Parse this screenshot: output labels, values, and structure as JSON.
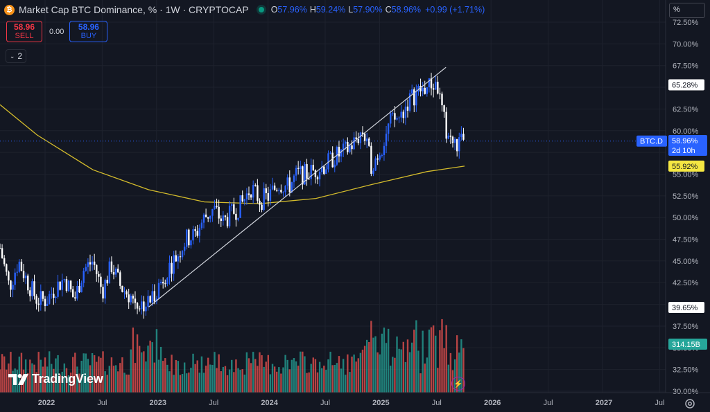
{
  "header": {
    "title": "Market Cap BTC Dominance, % · 1W · CRYPTOCAP",
    "ohlc": {
      "o_label": "O",
      "o": "57.96%",
      "h_label": "H",
      "h": "59.24%",
      "l_label": "L",
      "l": "57.90%",
      "c_label": "C",
      "c": "58.96%",
      "change": "+0.99 (+1.71%)"
    }
  },
  "trade": {
    "sell_price": "58.96",
    "sell_label": "SELL",
    "spread": "0.00",
    "buy_price": "58.96",
    "buy_label": "BUY"
  },
  "indicators_toggle": "2",
  "percent_button": "%",
  "branding": "TradingView",
  "price_axis": {
    "ticks": [
      "72.50%",
      "70.00%",
      "67.50%",
      "65.00%",
      "62.50%",
      "60.00%",
      "57.50%",
      "55.00%",
      "52.50%",
      "50.00%",
      "47.50%",
      "45.00%",
      "42.50%",
      "40.00%",
      "37.50%",
      "35.00%",
      "32.50%",
      "30.00%"
    ],
    "badges": {
      "trendline_level": "65.28%",
      "symbol": "BTC.D",
      "last_price": "58.96%",
      "countdown": "2d 10h",
      "ma_level": "55.92%",
      "low_marker": "39.65%",
      "volume": "314.15B"
    }
  },
  "time_axis": {
    "ticks": [
      "2022",
      "Jul",
      "2023",
      "Jul",
      "2024",
      "Jul",
      "2025",
      "Jul",
      "2026",
      "Jul",
      "2027",
      "Jul"
    ]
  },
  "colors": {
    "background": "#131722",
    "up": "#2962ff",
    "down": "#ffffff",
    "ma": "#d4bc2c",
    "trendline": "#d1d4dc",
    "vol_up": "#26a69a",
    "vol_down": "#ef5350",
    "grid": "#1e222d"
  },
  "chart_data": {
    "type": "candlestick",
    "interval": "1W",
    "price_unit": "%",
    "ylim": [
      30,
      72.5
    ],
    "xlim": [
      "2021-08",
      "2027-11"
    ],
    "grid": true,
    "series": [
      {
        "name": "BTC.D",
        "kind": "candles",
        "close_path": [
          [
            "2021-08",
            46.5
          ],
          [
            "2021-09",
            42.0
          ],
          [
            "2021-10",
            45.0
          ],
          [
            "2021-11",
            42.5
          ],
          [
            "2021-12",
            40.5
          ],
          [
            "2022-01",
            40.5
          ],
          [
            "2022-02",
            42.0
          ],
          [
            "2022-03",
            43.0
          ],
          [
            "2022-04",
            40.5
          ],
          [
            "2022-05",
            44.0
          ],
          [
            "2022-06",
            45.0
          ],
          [
            "2022-07",
            41.5
          ],
          [
            "2022-08",
            44.5
          ],
          [
            "2022-09",
            42.0
          ],
          [
            "2022-10",
            41.0
          ],
          [
            "2022-11",
            40.0
          ],
          [
            "2022-12",
            40.2
          ],
          [
            "2023-01",
            42.0
          ],
          [
            "2023-02",
            44.0
          ],
          [
            "2023-03",
            45.5
          ],
          [
            "2023-04",
            47.5
          ],
          [
            "2023-05",
            48.0
          ],
          [
            "2023-06",
            50.0
          ],
          [
            "2023-07",
            51.0
          ],
          [
            "2023-08",
            49.5
          ],
          [
            "2023-09",
            50.5
          ],
          [
            "2023-10",
            51.5
          ],
          [
            "2023-11",
            53.5
          ],
          [
            "2023-12",
            52.0
          ],
          [
            "2024-01",
            52.5
          ],
          [
            "2024-02",
            54.0
          ],
          [
            "2024-03",
            53.5
          ],
          [
            "2024-04",
            55.0
          ],
          [
            "2024-05",
            55.0
          ],
          [
            "2024-06",
            55.5
          ],
          [
            "2024-07",
            56.0
          ],
          [
            "2024-08",
            57.0
          ],
          [
            "2024-09",
            57.5
          ],
          [
            "2024-10",
            58.5
          ],
          [
            "2024-11",
            60.0
          ],
          [
            "2024-12",
            56.0
          ],
          [
            "2025-01",
            58.0
          ],
          [
            "2025-02",
            61.0
          ],
          [
            "2025-03",
            61.5
          ],
          [
            "2025-04",
            63.5
          ],
          [
            "2025-05",
            64.5
          ],
          [
            "2025-06",
            65.0
          ],
          [
            "2025-07",
            65.5
          ],
          [
            "2025-08",
            60.0
          ],
          [
            "2025-09",
            58.2
          ],
          [
            "2025-10",
            58.96
          ]
        ]
      },
      {
        "name": "MA",
        "kind": "line",
        "points": [
          [
            "2021-08",
            63.0
          ],
          [
            "2021-12",
            59.5
          ],
          [
            "2022-06",
            55.5
          ],
          [
            "2022-12",
            53.2
          ],
          [
            "2023-06",
            51.8
          ],
          [
            "2023-12",
            51.6
          ],
          [
            "2024-06",
            52.2
          ],
          [
            "2024-12",
            53.8
          ],
          [
            "2025-06",
            55.3
          ],
          [
            "2025-10",
            55.92
          ]
        ]
      },
      {
        "name": "Trendline",
        "kind": "line",
        "points": [
          [
            "2022-12",
            39.7
          ],
          [
            "2025-08",
            67.3
          ]
        ]
      },
      {
        "name": "Volume",
        "kind": "histogram",
        "unit": "B",
        "last": 314.15
      }
    ]
  }
}
